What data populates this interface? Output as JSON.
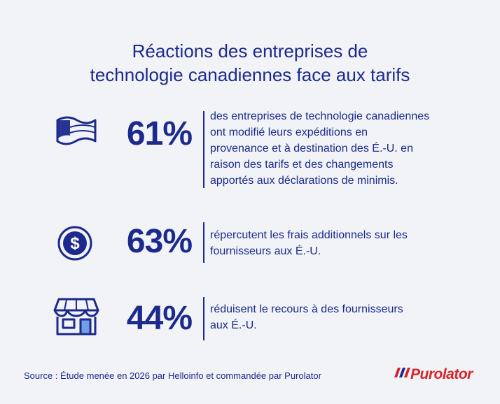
{
  "title": [
    "Réactions des entreprises de",
    "technologie canadiennes face aux tarifs"
  ],
  "stats": [
    {
      "value": "61%",
      "lines": [
        " des entreprises de technologie canadiennes",
        "ont modifié leurs expéditions en",
        "provenance et à destination des É.-U. en",
        "raison des tarifs et des changements",
        "apportés aux déclarations de minimis."
      ]
    },
    {
      "value": "63%",
      "lines": [
        "répercutent les frais additionnels sur les",
        "fournisseurs aux É.-U."
      ]
    },
    {
      "value": "44%",
      "lines": [
        "réduisent le recours à des fournisseurs",
        "aux É.-U."
      ]
    }
  ],
  "source": "Source : Étude menée en 2026 par Helloinfo et commandée par Purolator",
  "logo": "Purolator"
}
